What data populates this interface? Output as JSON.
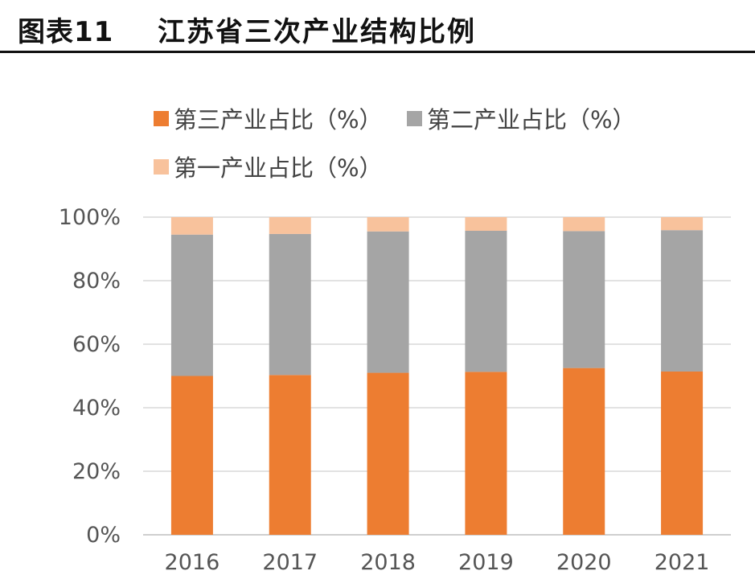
{
  "header": {
    "figure_label": "图表11",
    "title": "江苏省三次产业结构比例"
  },
  "chart_data": {
    "type": "bar",
    "stacked": true,
    "title": "江苏省三次产业结构比例",
    "categories": [
      "2016",
      "2017",
      "2018",
      "2019",
      "2020",
      "2021"
    ],
    "series": [
      {
        "name": "第三产业占比（%）",
        "color": "#ED7D31",
        "values": [
          50.0,
          50.3,
          51.0,
          51.3,
          52.5,
          51.4
        ]
      },
      {
        "name": "第二产业占比（%）",
        "color": "#A5A5A5",
        "values": [
          44.5,
          44.4,
          44.5,
          44.4,
          43.1,
          44.5
        ]
      },
      {
        "name": "第一产业占比（%）",
        "color": "#F8C29C",
        "values": [
          5.5,
          5.3,
          4.5,
          4.3,
          4.4,
          4.1
        ]
      }
    ],
    "ylim": [
      0,
      100
    ],
    "yticks": [
      "0%",
      "20%",
      "40%",
      "60%",
      "80%",
      "100%"
    ],
    "ytick_values": [
      0,
      20,
      40,
      60,
      80,
      100
    ],
    "grid": true,
    "legend_position": "top-left",
    "xlabel": "",
    "ylabel": ""
  }
}
